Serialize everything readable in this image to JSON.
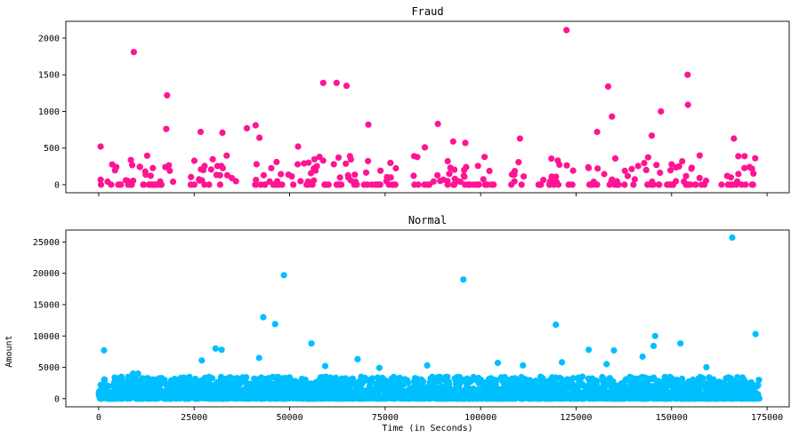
{
  "chart_data": [
    {
      "type": "scatter",
      "title": "Fraud",
      "xlabel": "",
      "ylabel": "",
      "xlim": [
        -8600,
        180800
      ],
      "ylim": [
        -110,
        2230
      ],
      "x_ticks": [
        0,
        25000,
        50000,
        75000,
        100000,
        125000,
        150000,
        175000
      ],
      "x_tick_labels_visible": false,
      "y_ticks": [
        0,
        500,
        1000,
        1500,
        2000
      ],
      "y_tick_labels": [
        "0",
        "500",
        "1000",
        "1500",
        "2000"
      ],
      "grid": false,
      "color": "#FF1493",
      "sample_points": [
        [
          500,
          520
        ],
        [
          600,
          0
        ],
        [
          4600,
          240
        ],
        [
          7100,
          60
        ],
        [
          9200,
          1810
        ],
        [
          12200,
          180
        ],
        [
          17700,
          760
        ],
        [
          17900,
          1220
        ],
        [
          18600,
          190
        ],
        [
          26700,
          720
        ],
        [
          32400,
          710
        ],
        [
          38800,
          770
        ],
        [
          41100,
          810
        ],
        [
          42100,
          640
        ],
        [
          52200,
          520
        ],
        [
          58800,
          1390
        ],
        [
          62300,
          1390
        ],
        [
          64900,
          1350
        ],
        [
          70600,
          820
        ],
        [
          85400,
          510
        ],
        [
          88800,
          830
        ],
        [
          92800,
          590
        ],
        [
          96000,
          570
        ],
        [
          110300,
          630
        ],
        [
          122500,
          2110
        ],
        [
          130500,
          720
        ],
        [
          133400,
          1340
        ],
        [
          134400,
          930
        ],
        [
          144800,
          670
        ],
        [
          147200,
          1000
        ],
        [
          154200,
          1500
        ],
        [
          154300,
          1090
        ],
        [
          166300,
          630
        ],
        [
          169100,
          390
        ],
        [
          170400,
          240
        ]
      ],
      "dense_x_ranges": [
        [
          100,
          20000
        ],
        [
          24000,
          36000
        ],
        [
          40000,
          50000
        ],
        [
          50000,
          72000
        ],
        [
          72000,
          79000
        ],
        [
          82000,
          96000
        ],
        [
          96000,
          104000
        ],
        [
          108000,
          112000
        ],
        [
          115000,
          125000
        ],
        [
          127000,
          136000
        ],
        [
          136000,
          160000
        ],
        [
          163000,
          172000
        ]
      ],
      "dense_y_max": 400
    },
    {
      "type": "scatter",
      "title": "Normal",
      "xlabel": "Time (in Seconds)",
      "ylabel": "Amount",
      "xlim": [
        -8600,
        180800
      ],
      "ylim": [
        -1300,
        26900
      ],
      "x_ticks": [
        0,
        25000,
        50000,
        75000,
        100000,
        125000,
        150000,
        175000
      ],
      "x_tick_labels": [
        "0",
        "25000",
        "50000",
        "75000",
        "100000",
        "125000",
        "150000",
        "175000"
      ],
      "y_ticks": [
        0,
        5000,
        10000,
        15000,
        20000,
        25000
      ],
      "y_tick_labels": [
        "0",
        "5000",
        "10000",
        "15000",
        "20000",
        "25000"
      ],
      "grid": false,
      "color": "#00BFFF",
      "sample_points": [
        [
          1400,
          7700
        ],
        [
          9000,
          4000
        ],
        [
          10300,
          4000
        ],
        [
          27000,
          6100
        ],
        [
          30600,
          8000
        ],
        [
          32200,
          7800
        ],
        [
          42000,
          6500
        ],
        [
          43100,
          13000
        ],
        [
          46200,
          11900
        ],
        [
          48500,
          19700
        ],
        [
          55700,
          8800
        ],
        [
          59300,
          5200
        ],
        [
          67800,
          6300
        ],
        [
          73500,
          4900
        ],
        [
          86000,
          5300
        ],
        [
          95500,
          19000
        ],
        [
          104500,
          5700
        ],
        [
          111100,
          5300
        ],
        [
          119700,
          11800
        ],
        [
          121300,
          5800
        ],
        [
          128300,
          7800
        ],
        [
          133000,
          5500
        ],
        [
          134900,
          7700
        ],
        [
          142400,
          6700
        ],
        [
          145300,
          8400
        ],
        [
          145700,
          10000
        ],
        [
          152300,
          8800
        ],
        [
          159100,
          5000
        ],
        [
          165900,
          25700
        ],
        [
          172000,
          10300
        ]
      ],
      "dense_x_ranges": [
        [
          0,
          173000
        ]
      ],
      "dense_y_max": 3500
    }
  ]
}
